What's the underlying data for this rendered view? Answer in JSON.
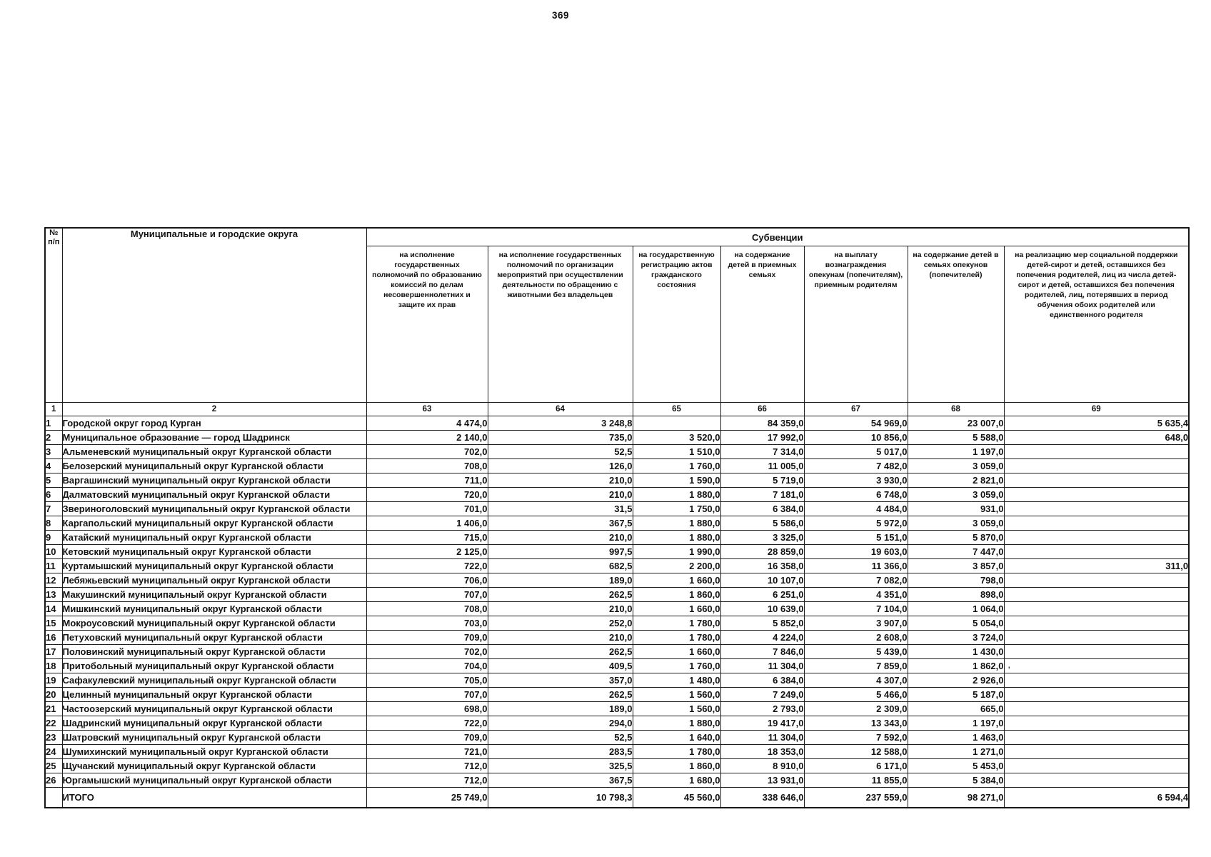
{
  "page": {
    "number": "369",
    "stray_mark": "'"
  },
  "colors": {
    "ink": "#121212",
    "paper": "#ffffff"
  },
  "table": {
    "col_headers": {
      "num": "№ п/п",
      "num_code": "1",
      "municipality": "Муниципальные и городские округа",
      "municipality_code": "2",
      "group": "Субвенции",
      "columns": [
        {
          "code": "63",
          "label": "на исполнение государственных полномочий по образованию комиссий по делам несовершеннолетних и защите их прав"
        },
        {
          "code": "64",
          "label": "на исполнение государственных полномочий по организации мероприятий при осуществлении деятельности по обращению с животными без владельцев"
        },
        {
          "code": "65",
          "label": "на государственную регистрацию актов гражданского состояния"
        },
        {
          "code": "66",
          "label": "на содержание детей в приемных семьях"
        },
        {
          "code": "67",
          "label": "на выплату вознаграждения опекунам (попечителям), приемным родителям"
        },
        {
          "code": "68",
          "label": "на содержание детей в семьях опекунов (попечителей)"
        },
        {
          "code": "69",
          "label": "на реализацию мер социальной поддержки детей-сирот и детей, оставшихся без попечения родителей, лиц из числа детей-сирот и детей, оставшихся без попечения родителей, лиц, потерявших в период обучения обоих родителей или единственного родителя"
        }
      ]
    },
    "rows": [
      {
        "n": "1",
        "name": "Городской округ город Курган",
        "values": [
          "4 474,0",
          "3 248,8",
          "",
          "84 359,0",
          "54 969,0",
          "23 007,0",
          "5 635,4"
        ]
      },
      {
        "n": "2",
        "name": "Муниципальное образование — город Шадринск",
        "values": [
          "2 140,0",
          "735,0",
          "3 520,0",
          "17 992,0",
          "10 856,0",
          "5 588,0",
          "648,0"
        ]
      },
      {
        "n": "3",
        "name": "Альменевский муниципальный округ Курганской области",
        "values": [
          "702,0",
          "52,5",
          "1 510,0",
          "7 314,0",
          "5 017,0",
          "1 197,0",
          ""
        ]
      },
      {
        "n": "4",
        "name": "Белозерский муниципальный округ Курганской области",
        "values": [
          "708,0",
          "126,0",
          "1 760,0",
          "11 005,0",
          "7 482,0",
          "3 059,0",
          ""
        ]
      },
      {
        "n": "5",
        "name": "Варгашинский муниципальный округ Курганской области",
        "values": [
          "711,0",
          "210,0",
          "1 590,0",
          "5 719,0",
          "3 930,0",
          "2 821,0",
          ""
        ]
      },
      {
        "n": "6",
        "name": "Далматовский муниципальный округ Курганской области",
        "values": [
          "720,0",
          "210,0",
          "1 880,0",
          "7 181,0",
          "6 748,0",
          "3 059,0",
          ""
        ]
      },
      {
        "n": "7",
        "name": "Звериноголовский муниципальный округ Курганской области",
        "values": [
          "701,0",
          "31,5",
          "1 750,0",
          "6 384,0",
          "4 484,0",
          "931,0",
          ""
        ]
      },
      {
        "n": "8",
        "name": "Каргапольский муниципальный округ Курганской области",
        "values": [
          "1 406,0",
          "367,5",
          "1 880,0",
          "5 586,0",
          "5 972,0",
          "3 059,0",
          ""
        ]
      },
      {
        "n": "9",
        "name": "Катайский муниципальный округ Курганской области",
        "values": [
          "715,0",
          "210,0",
          "1 880,0",
          "3 325,0",
          "5 151,0",
          "5 870,0",
          ""
        ]
      },
      {
        "n": "10",
        "name": "Кетовский муниципальный округ Курганской области",
        "values": [
          "2 125,0",
          "997,5",
          "1 990,0",
          "28 859,0",
          "19 603,0",
          "7 447,0",
          ""
        ]
      },
      {
        "n": "11",
        "name": "Куртамышский муниципальный округ Курганской области",
        "values": [
          "722,0",
          "682,5",
          "2 200,0",
          "16 358,0",
          "11 366,0",
          "3 857,0",
          "311,0"
        ]
      },
      {
        "n": "12",
        "name": "Лебяжьевский муниципальный округ Курганской области",
        "values": [
          "706,0",
          "189,0",
          "1 660,0",
          "10 107,0",
          "7 082,0",
          "798,0",
          ""
        ]
      },
      {
        "n": "13",
        "name": "Макушинский муниципальный округ Курганской области",
        "values": [
          "707,0",
          "262,5",
          "1 860,0",
          "6 251,0",
          "4 351,0",
          "898,0",
          ""
        ]
      },
      {
        "n": "14",
        "name": "Мишкинский муниципальный округ Курганской области",
        "values": [
          "708,0",
          "210,0",
          "1 660,0",
          "10 639,0",
          "7 104,0",
          "1 064,0",
          ""
        ]
      },
      {
        "n": "15",
        "name": "Мокроусовский муниципальный округ Курганской области",
        "values": [
          "703,0",
          "252,0",
          "1 780,0",
          "5 852,0",
          "3 907,0",
          "5 054,0",
          ""
        ]
      },
      {
        "n": "16",
        "name": "Петуховский муниципальный округ Курганской области",
        "values": [
          "709,0",
          "210,0",
          "1 780,0",
          "4 224,0",
          "2 608,0",
          "3 724,0",
          ""
        ]
      },
      {
        "n": "17",
        "name": "Половинский муниципальный округ Курганской области",
        "values": [
          "702,0",
          "262,5",
          "1 660,0",
          "7 846,0",
          "5 439,0",
          "1 430,0",
          ""
        ]
      },
      {
        "n": "18",
        "name": "Притобольный муниципальный округ Курганской области",
        "values": [
          "704,0",
          "409,5",
          "1 760,0",
          "11 304,0",
          "7 859,0",
          "1 862,0",
          ""
        ]
      },
      {
        "n": "19",
        "name": "Сафакулевский муниципальный округ Курганской области",
        "values": [
          "705,0",
          "357,0",
          "1 480,0",
          "6 384,0",
          "4 307,0",
          "2 926,0",
          ""
        ]
      },
      {
        "n": "20",
        "name": "Целинный муниципальный округ Курганской области",
        "values": [
          "707,0",
          "262,5",
          "1 560,0",
          "7 249,0",
          "5 466,0",
          "5 187,0",
          ""
        ]
      },
      {
        "n": "21",
        "name": "Частоозерский муниципальный округ Курганской области",
        "values": [
          "698,0",
          "189,0",
          "1 560,0",
          "2 793,0",
          "2 309,0",
          "665,0",
          ""
        ]
      },
      {
        "n": "22",
        "name": "Шадринский муниципальный округ Курганской области",
        "values": [
          "722,0",
          "294,0",
          "1 880,0",
          "19 417,0",
          "13 343,0",
          "1 197,0",
          ""
        ]
      },
      {
        "n": "23",
        "name": "Шатровский муниципальный округ Курганской области",
        "values": [
          "709,0",
          "52,5",
          "1 640,0",
          "11 304,0",
          "7 592,0",
          "1 463,0",
          ""
        ]
      },
      {
        "n": "24",
        "name": "Шумихинский муниципальный округ Курганской области",
        "values": [
          "721,0",
          "283,5",
          "1 780,0",
          "18 353,0",
          "12 588,0",
          "1 271,0",
          ""
        ]
      },
      {
        "n": "25",
        "name": "Щучанский муниципальный округ Курганской области",
        "values": [
          "712,0",
          "325,5",
          "1 860,0",
          "8 910,0",
          "6 171,0",
          "5 453,0",
          ""
        ]
      },
      {
        "n": "26",
        "name": "Юргамышский муниципальный округ Курганской области",
        "values": [
          "712,0",
          "367,5",
          "1 680,0",
          "13 931,0",
          "11 855,0",
          "5 384,0",
          ""
        ]
      }
    ],
    "total": {
      "num": "",
      "label": "ИТОГО",
      "values": [
        "25 749,0",
        "10 798,3",
        "45 560,0",
        "338 646,0",
        "237 559,0",
        "98 271,0",
        "6 594,4"
      ]
    }
  }
}
